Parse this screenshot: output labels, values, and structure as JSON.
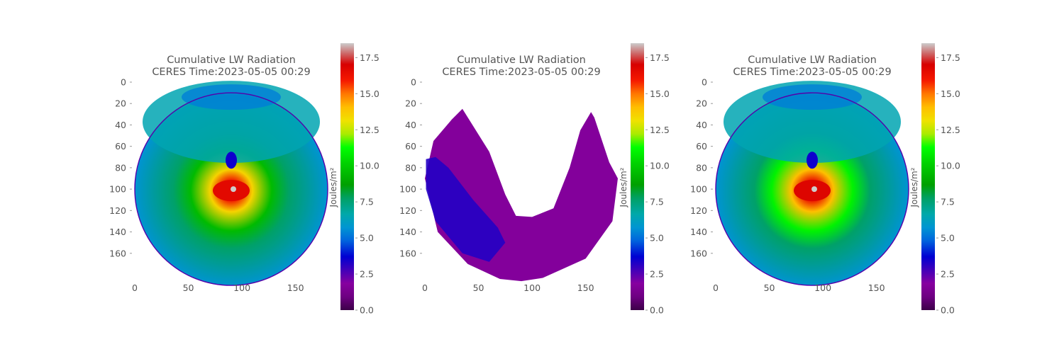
{
  "chart_data": [
    {
      "type": "heatmap",
      "title": "Cumulative LW Radiation",
      "subtitle": "CERES Time:2023-05-05 00:29",
      "x_ticks": [
        "0",
        "50",
        "100",
        "150"
      ],
      "y_ticks": [
        "0",
        "20",
        "40",
        "60",
        "80",
        "100",
        "120",
        "140",
        "160"
      ],
      "xlim": [
        0,
        180
      ],
      "ylim": [
        190,
        0
      ],
      "colorbar": {
        "label": "Joules/m²",
        "range": [
          0.0,
          18.5
        ],
        "ticks": [
          "0.0",
          "2.5",
          "5.0",
          "7.5",
          "10.0",
          "12.5",
          "15.0",
          "17.5"
        ],
        "colormap": "nipy_spectral"
      },
      "field": {
        "mask": "full-disk",
        "center_x": 90,
        "center_y": 100,
        "peak_value": 17.6,
        "high_ring_value": 13.5,
        "mid_ring_value": 9.5,
        "background_value": 6.5,
        "low_spot": {
          "x": 90,
          "y": 73,
          "value": 3.5
        }
      }
    },
    {
      "type": "heatmap",
      "title": "Cumulative LW Radiation",
      "subtitle": "CERES Time:2023-05-05 00:29",
      "x_ticks": [
        "0",
        "50",
        "100",
        "150"
      ],
      "y_ticks": [
        "0",
        "20",
        "40",
        "60",
        "80",
        "100",
        "120",
        "140",
        "160"
      ],
      "xlim": [
        0,
        180
      ],
      "ylim": [
        190,
        0
      ],
      "colorbar": {
        "label": "Joules/m²",
        "range": [
          0.0,
          18.5
        ],
        "ticks": [
          "0.0",
          "2.5",
          "5.0",
          "7.5",
          "10.0",
          "12.5",
          "15.0",
          "17.5"
        ],
        "colormap": "nipy_spectral"
      },
      "field": {
        "mask": "u-shaped-swath",
        "dominant_value": 1.7,
        "low_region_value": 3.2
      }
    },
    {
      "type": "heatmap",
      "title": "Cumulative LW Radiation",
      "subtitle": "CERES Time:2023-05-05 00:29",
      "x_ticks": [
        "0",
        "50",
        "100",
        "150"
      ],
      "y_ticks": [
        "0",
        "20",
        "40",
        "60",
        "80",
        "100",
        "120",
        "140",
        "160"
      ],
      "xlim": [
        0,
        180
      ],
      "ylim": [
        190,
        0
      ],
      "colorbar": {
        "label": "Joules/m²",
        "range": [
          0.0,
          18.5
        ],
        "ticks": [
          "0.0",
          "2.5",
          "5.0",
          "7.5",
          "10.0",
          "12.5",
          "15.0",
          "17.5"
        ],
        "colormap": "nipy_spectral"
      },
      "field": {
        "mask": "full-disk",
        "center_x": 90,
        "center_y": 100,
        "peak_value": 17.8,
        "high_ring_value": 14.0,
        "mid_ring_value": 11.0,
        "background_value": 6.5,
        "low_spot": {
          "x": 90,
          "y": 73,
          "value": 3.5
        }
      }
    }
  ]
}
